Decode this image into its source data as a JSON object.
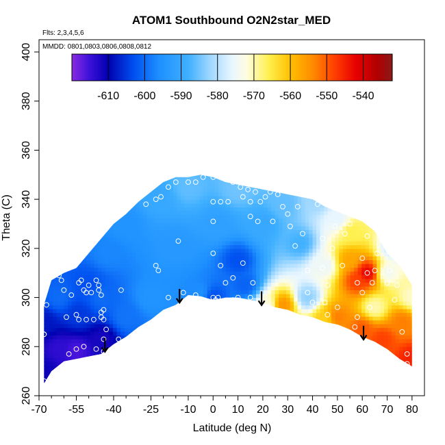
{
  "chart_data": {
    "type": "heatmap",
    "title": "ATOM1 Southbound O2N2star_MED",
    "annotations": [
      "Flts: 2,3,4,5,6",
      "MMDD: 0801,0803,0806,0808,0812"
    ],
    "xlabel": "Latitude (deg N)",
    "ylabel": "Theta (C)",
    "xlim": [
      -70,
      85
    ],
    "ylim": [
      260,
      405
    ],
    "x_ticks": [
      -70,
      -55,
      -40,
      -25,
      -10,
      0,
      10,
      20,
      30,
      40,
      50,
      60,
      70,
      80
    ],
    "x_minor_ticks": [
      -65,
      -60,
      -50,
      -45,
      -35,
      -30,
      -20,
      -15,
      -5,
      5,
      15,
      25,
      35,
      45,
      55,
      65,
      75
    ],
    "y_ticks": [
      260,
      280,
      300,
      320,
      340,
      360,
      380,
      400
    ],
    "colorbar": {
      "range": [
        -620,
        -532
      ],
      "ticks": [
        -610,
        -600,
        -590,
        -580,
        -570,
        -560,
        -550,
        -540
      ],
      "stops": [
        {
          "v": -620,
          "c": "#8a2be2"
        },
        {
          "v": -615,
          "c": "#3a10d8"
        },
        {
          "v": -610,
          "c": "#0000b0"
        },
        {
          "v": -603,
          "c": "#0050f0"
        },
        {
          "v": -596,
          "c": "#1e90ff"
        },
        {
          "v": -588,
          "c": "#40b0ff"
        },
        {
          "v": -582,
          "c": "#a0d8ff"
        },
        {
          "v": -576,
          "c": "#e8f6ff"
        },
        {
          "v": -572,
          "c": "#fffde0"
        },
        {
          "v": -566,
          "c": "#fff050"
        },
        {
          "v": -560,
          "c": "#ffc000"
        },
        {
          "v": -554,
          "c": "#ff8c00"
        },
        {
          "v": -548,
          "c": "#ff4000"
        },
        {
          "v": -542,
          "c": "#e80000"
        },
        {
          "v": -536,
          "c": "#b00000"
        },
        {
          "v": -532,
          "c": "#8b1a1a"
        }
      ]
    },
    "field_outline": {
      "top": [
        [
          -68,
          297
        ],
        [
          -65,
          307
        ],
        [
          -60,
          310
        ],
        [
          -55,
          312
        ],
        [
          -50,
          318
        ],
        [
          -45,
          324
        ],
        [
          -40,
          330
        ],
        [
          -35,
          334
        ],
        [
          -30,
          339
        ],
        [
          -25,
          343
        ],
        [
          -20,
          347
        ],
        [
          -15,
          349
        ],
        [
          -10,
          349
        ],
        [
          -5,
          350
        ],
        [
          0,
          349
        ],
        [
          5,
          347
        ],
        [
          10,
          346
        ],
        [
          15,
          345
        ],
        [
          20,
          344
        ],
        [
          25,
          343
        ],
        [
          30,
          342
        ],
        [
          35,
          341
        ],
        [
          40,
          340
        ],
        [
          45,
          337
        ],
        [
          50,
          335
        ],
        [
          55,
          333
        ],
        [
          60,
          331
        ],
        [
          65,
          327
        ],
        [
          70,
          318
        ],
        [
          75,
          313
        ],
        [
          80,
          305
        ]
      ],
      "bottom": [
        [
          -68,
          265
        ],
        [
          -65,
          270
        ],
        [
          -60,
          274
        ],
        [
          -55,
          275
        ],
        [
          -50,
          276
        ],
        [
          -45,
          277
        ],
        [
          -40,
          281
        ],
        [
          -35,
          284
        ],
        [
          -30,
          288
        ],
        [
          -25,
          291
        ],
        [
          -20,
          295
        ],
        [
          -15,
          297
        ],
        [
          -10,
          301
        ],
        [
          -5,
          300.5
        ],
        [
          0,
          299
        ],
        [
          5,
          300
        ],
        [
          10,
          300
        ],
        [
          15,
          299
        ],
        [
          20,
          298
        ],
        [
          25,
          296
        ],
        [
          30,
          295
        ],
        [
          35,
          293
        ],
        [
          40,
          292
        ],
        [
          45,
          290
        ],
        [
          50,
          289
        ],
        [
          55,
          287
        ],
        [
          60,
          284
        ],
        [
          65,
          282
        ],
        [
          70,
          279
        ],
        [
          75,
          275
        ],
        [
          80,
          272
        ]
      ]
    },
    "field_points": [
      {
        "x": -68,
        "y": 270,
        "v": -611
      },
      {
        "x": -68,
        "y": 290,
        "v": -608
      },
      {
        "x": -62,
        "y": 300,
        "v": -600
      },
      {
        "x": -62,
        "y": 279,
        "v": -614
      },
      {
        "x": -55,
        "y": 278,
        "v": -616
      },
      {
        "x": -54,
        "y": 293,
        "v": -605
      },
      {
        "x": -50,
        "y": 305,
        "v": -603
      },
      {
        "x": -45,
        "y": 283,
        "v": -612
      },
      {
        "x": -45,
        "y": 300,
        "v": -600
      },
      {
        "x": -42,
        "y": 318,
        "v": -597
      },
      {
        "x": -35,
        "y": 292,
        "v": -599
      },
      {
        "x": -35,
        "y": 330,
        "v": -595
      },
      {
        "x": -25,
        "y": 300,
        "v": -595
      },
      {
        "x": -22,
        "y": 340,
        "v": -590
      },
      {
        "x": -15,
        "y": 320,
        "v": -594
      },
      {
        "x": -10,
        "y": 345,
        "v": -586
      },
      {
        "x": -5,
        "y": 302,
        "v": -596
      },
      {
        "x": 0,
        "y": 300,
        "v": -603
      },
      {
        "x": 2,
        "y": 330,
        "v": -592
      },
      {
        "x": 10,
        "y": 315,
        "v": -603
      },
      {
        "x": 10,
        "y": 344,
        "v": -585
      },
      {
        "x": 13,
        "y": 305,
        "v": -601
      },
      {
        "x": 20,
        "y": 330,
        "v": -590
      },
      {
        "x": 22,
        "y": 297,
        "v": -572
      },
      {
        "x": 28,
        "y": 297,
        "v": -555
      },
      {
        "x": 28,
        "y": 338,
        "v": -586
      },
      {
        "x": 35,
        "y": 322,
        "v": -588
      },
      {
        "x": 38,
        "y": 300,
        "v": -583
      },
      {
        "x": 42,
        "y": 340,
        "v": -582
      },
      {
        "x": 45,
        "y": 291,
        "v": -562
      },
      {
        "x": 45,
        "y": 313,
        "v": -575
      },
      {
        "x": 50,
        "y": 292,
        "v": -553
      },
      {
        "x": 50,
        "y": 332,
        "v": -576
      },
      {
        "x": 55,
        "y": 315,
        "v": -557
      },
      {
        "x": 56,
        "y": 327,
        "v": -566
      },
      {
        "x": 58,
        "y": 307,
        "v": -548
      },
      {
        "x": 60,
        "y": 287,
        "v": -550
      },
      {
        "x": 62,
        "y": 310,
        "v": -542
      },
      {
        "x": 65,
        "y": 296,
        "v": -570
      },
      {
        "x": 68,
        "y": 283,
        "v": -548
      },
      {
        "x": 70,
        "y": 310,
        "v": -574
      },
      {
        "x": 72,
        "y": 320,
        "v": -578
      },
      {
        "x": 76,
        "y": 290,
        "v": -553
      },
      {
        "x": 80,
        "y": 275,
        "v": -545
      },
      {
        "x": 80,
        "y": 300,
        "v": -571
      }
    ],
    "obs_points": [
      [
        -68,
        285
      ],
      [
        -68,
        285
      ],
      [
        -68,
        266
      ],
      [
        -67,
        297
      ],
      [
        -62,
        309
      ],
      [
        -61,
        307
      ],
      [
        -60,
        303
      ],
      [
        -57,
        301
      ],
      [
        -54,
        306
      ],
      [
        -54,
        291
      ],
      [
        -53,
        307
      ],
      [
        -52,
        303
      ],
      [
        -51,
        302
      ],
      [
        -50,
        305
      ],
      [
        -49,
        302
      ],
      [
        -47,
        307
      ],
      [
        -46,
        305
      ],
      [
        -46,
        303
      ],
      [
        -45,
        301
      ],
      [
        -45,
        294
      ],
      [
        -45,
        292
      ],
      [
        -44,
        295
      ],
      [
        -44,
        291
      ],
      [
        -43,
        287
      ],
      [
        -44,
        283
      ],
      [
        -44,
        278
      ],
      [
        -47,
        279
      ],
      [
        -52,
        280
      ],
      [
        -58,
        277
      ],
      [
        -55,
        279
      ],
      [
        -59,
        292
      ],
      [
        -55,
        293
      ],
      [
        -51,
        291
      ],
      [
        -48,
        291
      ],
      [
        -38,
        283
      ],
      [
        -37,
        303
      ],
      [
        -23,
        313
      ],
      [
        -22,
        311
      ],
      [
        -14,
        323
      ],
      [
        -18,
        300
      ],
      [
        -12,
        302
      ],
      [
        -7,
        301
      ],
      [
        0,
        300
      ],
      [
        1,
        299
      ],
      [
        2,
        300
      ],
      [
        8,
        299
      ],
      [
        10,
        300
      ],
      [
        -23,
        340
      ],
      [
        -27,
        338
      ],
      [
        -21,
        341
      ],
      [
        -18,
        345
      ],
      [
        -15,
        347
      ],
      [
        -10,
        347
      ],
      [
        -4,
        349
      ],
      [
        0,
        349
      ],
      [
        0,
        339
      ],
      [
        0,
        331
      ],
      [
        0,
        318
      ],
      [
        3,
        313
      ],
      [
        3,
        339
      ],
      [
        6,
        339
      ],
      [
        8,
        347
      ],
      [
        11,
        345
      ],
      [
        12,
        341
      ],
      [
        14,
        344
      ],
      [
        15,
        333
      ],
      [
        15,
        339
      ],
      [
        17,
        343
      ],
      [
        18,
        331
      ],
      [
        19,
        339
      ],
      [
        21,
        341
      ],
      [
        23,
        343
      ],
      [
        24,
        331
      ],
      [
        26,
        342
      ],
      [
        28,
        337
      ],
      [
        30,
        334
      ],
      [
        31,
        329
      ],
      [
        33,
        321
      ],
      [
        34,
        337
      ],
      [
        36,
        326
      ],
      [
        38,
        311
      ],
      [
        38,
        302
      ],
      [
        40,
        298
      ],
      [
        42,
        338
      ],
      [
        44,
        324
      ],
      [
        44,
        312
      ],
      [
        45,
        298
      ],
      [
        46,
        293
      ],
      [
        46,
        305
      ],
      [
        48,
        320
      ],
      [
        49,
        329
      ],
      [
        50,
        296
      ],
      [
        52,
        313
      ],
      [
        53,
        326
      ],
      [
        55,
        330
      ],
      [
        57,
        288
      ],
      [
        58,
        292
      ],
      [
        58,
        306
      ],
      [
        60,
        302
      ],
      [
        60,
        316
      ],
      [
        62,
        310
      ],
      [
        62,
        325
      ],
      [
        63,
        296
      ],
      [
        64,
        306
      ],
      [
        65,
        311
      ],
      [
        66,
        318
      ],
      [
        68,
        323
      ],
      [
        70,
        306
      ],
      [
        71,
        311
      ],
      [
        73,
        299
      ],
      [
        74,
        305
      ],
      [
        76,
        286
      ],
      [
        78,
        277
      ],
      [
        78,
        273
      ],
      [
        -7,
        347
      ],
      [
        5,
        306
      ],
      [
        15,
        300
      ],
      [
        16,
        306
      ],
      [
        12,
        314
      ],
      [
        8,
        308
      ]
    ],
    "arrows": [
      {
        "x": -13.5,
        "y_top": 303.5,
        "y_bottom": 298
      },
      {
        "x": 19.5,
        "y_top": 302.5,
        "y_bottom": 297
      },
      {
        "x": 60.5,
        "y_top": 288.5,
        "y_bottom": 283
      },
      {
        "x": -43.5,
        "y_top": 283.5,
        "y_bottom": 278
      }
    ]
  }
}
